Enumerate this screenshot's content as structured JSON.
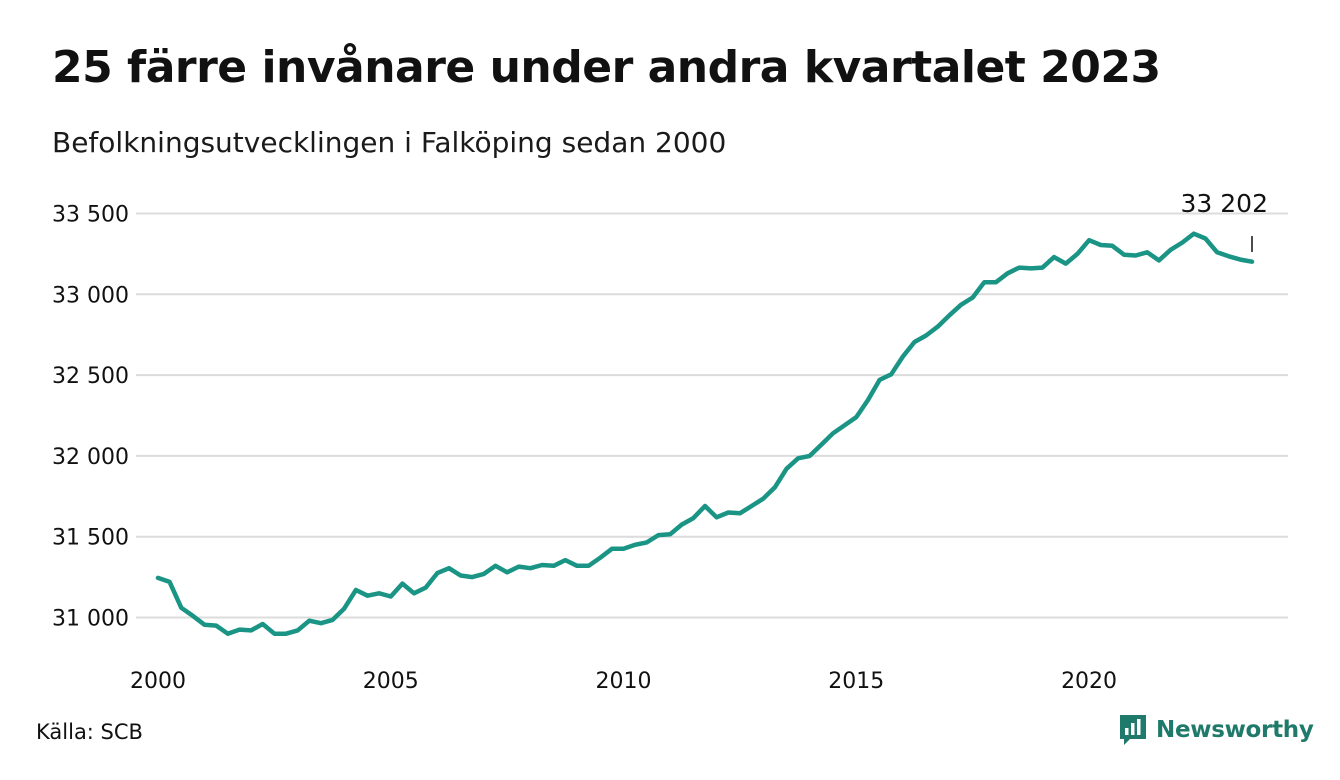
{
  "header": {
    "title": "25 färre invånare under andra kvartalet 2023",
    "subtitle": "Befolkningsutvecklingen i Falköping sedan 2000"
  },
  "footer": {
    "source": "Källa: SCB",
    "brand": "Newsworthy"
  },
  "colors": {
    "line": "#1a9484",
    "grid": "#dcdcdc",
    "brand": "#1f7a6b"
  },
  "icons": {
    "brand_logo": "newsworthy-logo-icon"
  },
  "chart_data": {
    "type": "line",
    "title": "25 färre invånare under andra kvartalet 2023",
    "subtitle": "Befolkningsutvecklingen i Falköping sedan 2000",
    "xlabel": "",
    "ylabel": "",
    "grid": true,
    "xlim": [
      2000.0,
      2023.5
    ],
    "ylim": [
      30800,
      33600
    ],
    "x_ticks": [
      2000,
      2005,
      2010,
      2015,
      2020
    ],
    "x_tick_labels": [
      "2000",
      "2005",
      "2010",
      "2015",
      "2020"
    ],
    "y_ticks": [
      31000,
      31500,
      32000,
      32500,
      33000,
      33500
    ],
    "y_tick_labels": [
      "31 000",
      "31 500",
      "32 000",
      "32 500",
      "33 000",
      "33 500"
    ],
    "end_label": "33 202",
    "series": [
      {
        "x": [
          2000.0,
          2000.25,
          2000.5,
          2000.75,
          2001.0,
          2001.25,
          2001.5,
          2001.75,
          2002.0,
          2002.25,
          2002.5,
          2002.75,
          2003.0,
          2003.25,
          2003.5,
          2003.75,
          2004.0,
          2004.25,
          2004.5,
          2004.75,
          2005.0,
          2005.25,
          2005.5,
          2005.75,
          2006.0,
          2006.25,
          2006.5,
          2006.75,
          2007.0,
          2007.25,
          2007.5,
          2007.75,
          2008.0,
          2008.25,
          2008.5,
          2008.75,
          2009.0,
          2009.25,
          2009.5,
          2009.75,
          2010.0,
          2010.25,
          2010.5,
          2010.75,
          2011.0,
          2011.25,
          2011.5,
          2011.75,
          2012.0,
          2012.25,
          2012.5,
          2012.75,
          2013.0,
          2013.25,
          2013.5,
          2013.75,
          2014.0,
          2014.25,
          2014.5,
          2014.75,
          2015.0,
          2015.25,
          2015.5,
          2015.75,
          2016.0,
          2016.25,
          2016.5,
          2016.75,
          2017.0,
          2017.25,
          2017.5,
          2017.75,
          2018.0,
          2018.25,
          2018.5,
          2018.75,
          2019.0,
          2019.25,
          2019.5,
          2019.75,
          2020.0,
          2020.25,
          2020.5,
          2020.75,
          2021.0,
          2021.25,
          2021.5,
          2021.75,
          2022.0,
          2022.25,
          2022.5,
          2022.75,
          2023.0,
          2023.25,
          2023.5
        ],
        "values": [
          31245,
          31220,
          31060,
          31010,
          30955,
          30950,
          30900,
          30925,
          30920,
          30960,
          30900,
          30900,
          30920,
          30980,
          30965,
          30985,
          31055,
          31170,
          31135,
          31150,
          31130,
          31210,
          31150,
          31185,
          31275,
          31305,
          31260,
          31250,
          31270,
          31320,
          31280,
          31315,
          31305,
          31325,
          31320,
          31355,
          31320,
          31320,
          31370,
          31425,
          31425,
          31450,
          31465,
          31510,
          31515,
          31575,
          31615,
          31690,
          31620,
          31650,
          31645,
          31690,
          31735,
          31805,
          31920,
          31985,
          32000,
          32070,
          32140,
          32190,
          32240,
          32345,
          32470,
          32505,
          32615,
          32705,
          32745,
          32800,
          32870,
          32935,
          32980,
          33075,
          33075,
          33130,
          33165,
          33160,
          33165,
          33230,
          33190,
          33250,
          33335,
          33305,
          33300,
          33245,
          33240,
          33260,
          33210,
          33275,
          33320,
          33375,
          33345,
          33260,
          33235,
          33215,
          33202
        ]
      }
    ]
  }
}
